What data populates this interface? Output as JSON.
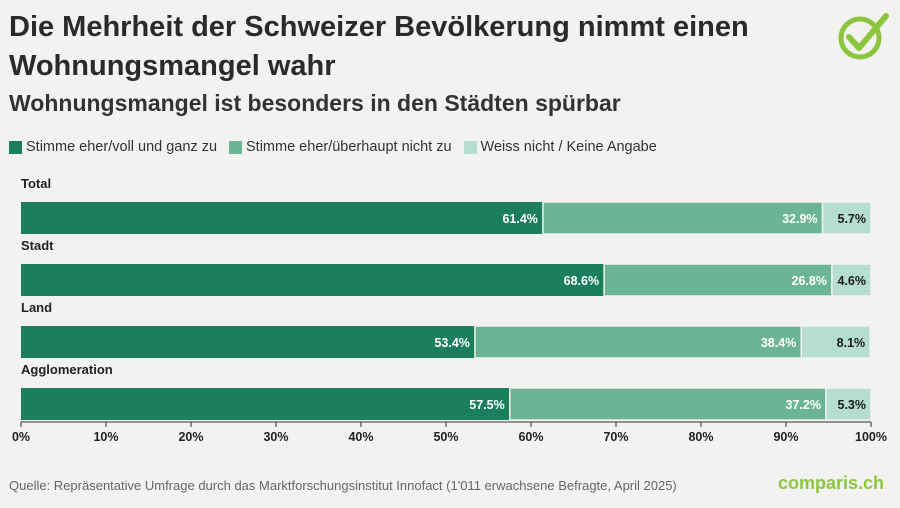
{
  "header": {
    "title": "Die Mehrheit der Schweizer Bevölkerung nimmt einen Wohnungsmangel wahr",
    "subtitle": "Wohnungsmangel ist besonders in den Städten spürbar"
  },
  "colors": {
    "agree": "#1a7f5a",
    "disagree": "#6bb596",
    "unknown": "#b5ddd0",
    "brand": "#8cc63f"
  },
  "chart_data": {
    "type": "bar",
    "orientation": "horizontal",
    "stacked": true,
    "title": "Die Mehrheit der Schweizer Bevölkerung nimmt einen Wohnungsmangel wahr",
    "subtitle": "Wohnungsmangel ist besonders in den Städten spürbar",
    "categories": [
      "Total",
      "Stadt",
      "Land",
      "Agglomeration"
    ],
    "series": [
      {
        "name": "Stimme eher/voll und ganz zu",
        "values": [
          61.4,
          68.6,
          53.4,
          57.5
        ]
      },
      {
        "name": "Stimme eher/überhaupt nicht zu",
        "values": [
          32.9,
          26.8,
          38.4,
          37.2
        ]
      },
      {
        "name": "Weiss nicht / Keine Angabe",
        "values": [
          5.7,
          4.6,
          8.1,
          5.3
        ]
      }
    ],
    "value_labels": [
      [
        "61.4%",
        "32.9%",
        "5.7%"
      ],
      [
        "68.6%",
        "26.8%",
        "4.6%"
      ],
      [
        "53.4%",
        "38.4%",
        "8.1%"
      ],
      [
        "57.5%",
        "37.2%",
        "5.3%"
      ]
    ],
    "xlim": [
      0,
      100
    ],
    "xticks": [
      "0%",
      "10%",
      "20%",
      "30%",
      "40%",
      "50%",
      "60%",
      "70%",
      "80%",
      "90%",
      "100%"
    ],
    "grid": false,
    "legend": "top-left"
  },
  "footer": {
    "source": "Quelle: Repräsentative Umfrage durch das Marktforschungsinstitut Innofact (1'011 erwachsene Befragte, April 2025)",
    "brand": "comparis.ch"
  }
}
